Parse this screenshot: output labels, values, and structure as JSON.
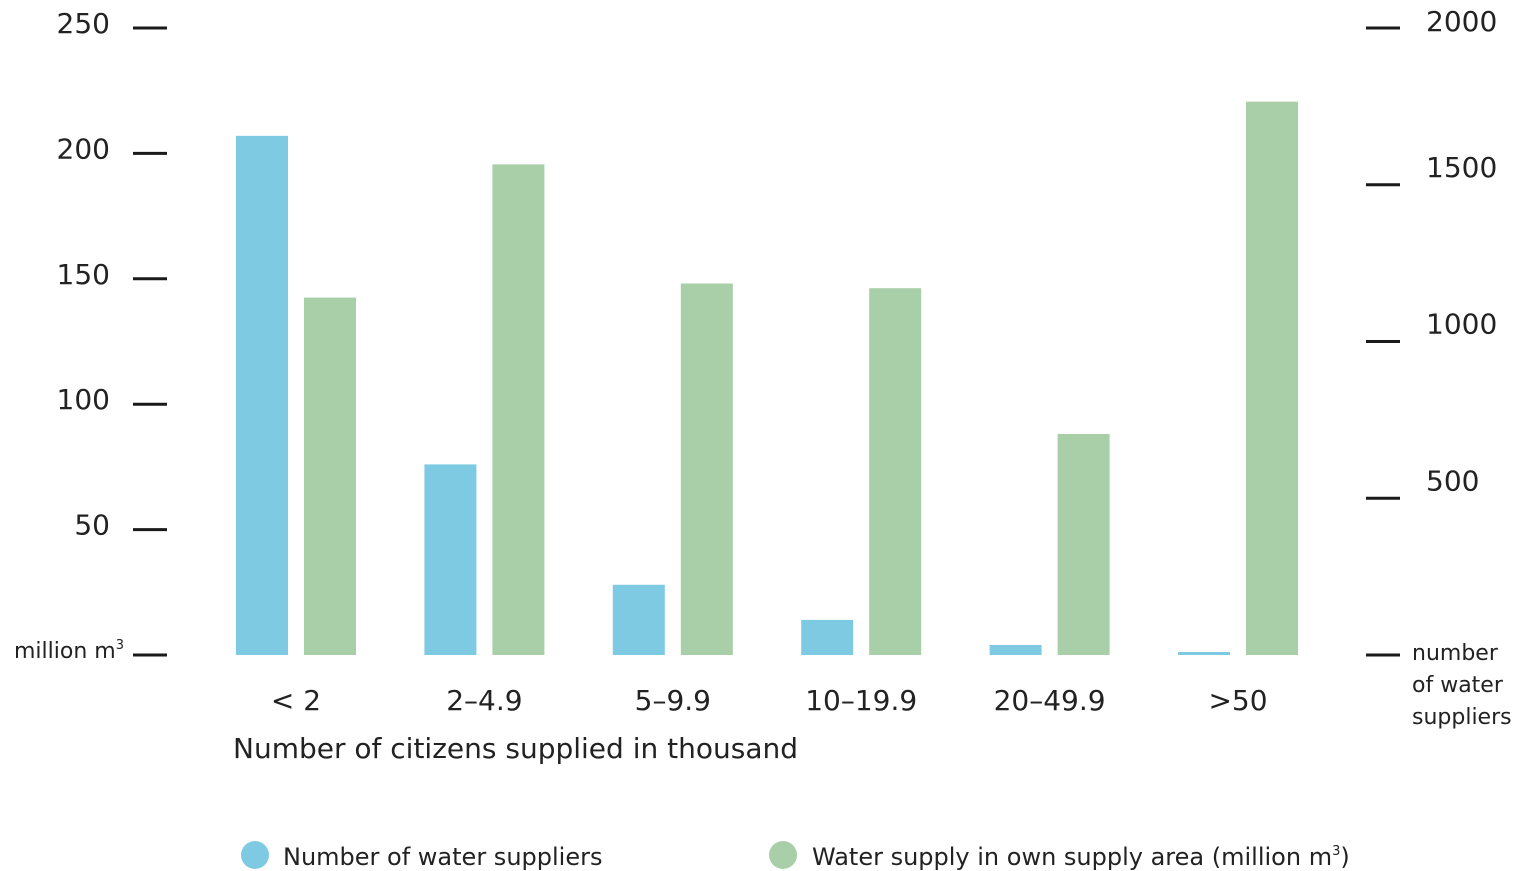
{
  "chart_data": {
    "type": "bar",
    "categories": [
      "< 2",
      "2–4.9",
      "5–9.9",
      "10–19.9",
      "20–49.9",
      ">50"
    ],
    "series": [
      {
        "name": "Number of water suppliers",
        "axis": "left",
        "color": "#7ecae3",
        "values": [
          207,
          76,
          28,
          14,
          4,
          1
        ]
      },
      {
        "name": "Water supply in own supply area (million m³)",
        "axis": "right",
        "color": "#a8cfa7",
        "values": [
          1140,
          1565,
          1185,
          1170,
          705,
          1765
        ]
      }
    ],
    "xlabel": "Number of citizens supplied in thousand",
    "left_axis": {
      "ylim": [
        0,
        250
      ],
      "ticks": [
        0,
        50,
        100,
        150,
        200,
        250
      ],
      "tick_labels": [
        "",
        "50",
        "100",
        "150",
        "200",
        "250"
      ],
      "bottom_label": "million m",
      "bottom_label_sup": "3"
    },
    "right_axis": {
      "ylim": [
        0,
        2000
      ],
      "ticks": [
        0,
        500,
        1000,
        1500,
        2000
      ],
      "tick_labels": [
        "",
        "500",
        "1000",
        "1500",
        "2000"
      ],
      "bottom_label_lines": [
        "number",
        "of water",
        "suppliers"
      ]
    },
    "legend": {
      "placement": "bottom",
      "items": [
        {
          "label": "Number of water suppliers",
          "color": "#7ecae3"
        },
        {
          "label": "Water supply in own supply area (million m",
          "sup": "3",
          "suffix": ")",
          "color": "#a8cfa7"
        }
      ]
    },
    "grid": false
  }
}
